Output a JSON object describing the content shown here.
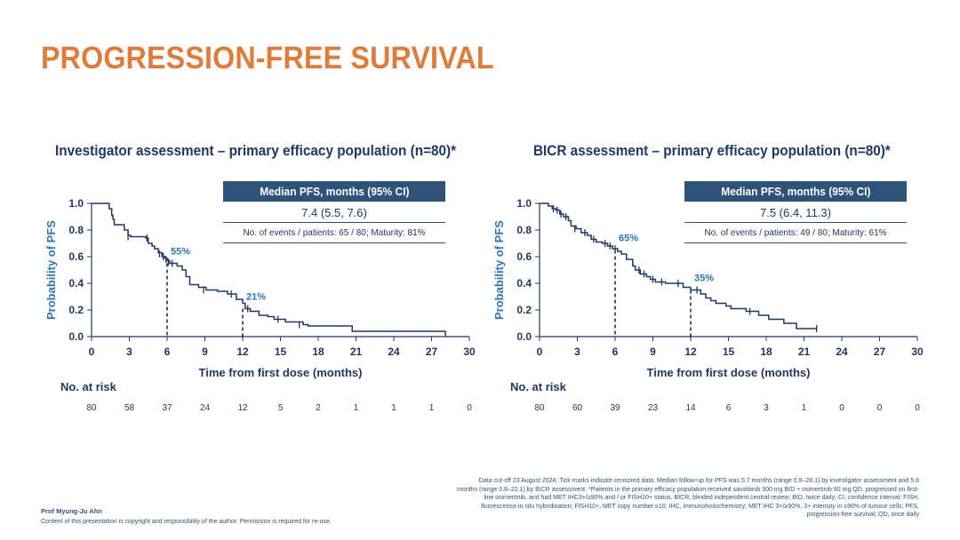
{
  "title": "PROGRESSION-FREE SURVIVAL",
  "chart_data": [
    {
      "type": "line",
      "title": "Investigator assessment – primary efficacy population (n=80)*",
      "xlabel": "Time from first dose (months)",
      "ylabel": "Probability of PFS",
      "xlim": [
        0,
        30
      ],
      "ylim": [
        0,
        1.0
      ],
      "xticks": [
        "0",
        "3",
        "6",
        "9",
        "12",
        "15",
        "18",
        "21",
        "24",
        "27",
        "30"
      ],
      "yticks": [
        "0.0",
        "0.2",
        "0.4",
        "0.6",
        "0.8",
        "1.0"
      ],
      "info_header": "Median PFS, months (95% CI)",
      "median": "7.4 (5.5, 7.6)",
      "events": "No. of events / patients: 65 / 80; Maturity: 81%",
      "annotations": [
        {
          "text": "55%",
          "x": 6,
          "y": 0.55
        },
        {
          "text": "21%",
          "x": 12,
          "y": 0.21
        }
      ],
      "steps": [
        [
          0,
          1.0
        ],
        [
          1.2,
          1.0
        ],
        [
          1.4,
          0.96
        ],
        [
          1.6,
          0.91
        ],
        [
          1.7,
          0.88
        ],
        [
          1.8,
          0.84
        ],
        [
          2.5,
          0.84
        ],
        [
          2.6,
          0.8
        ],
        [
          2.9,
          0.76
        ],
        [
          3.1,
          0.75
        ],
        [
          4.3,
          0.74
        ],
        [
          4.5,
          0.7
        ],
        [
          4.8,
          0.68
        ],
        [
          5.0,
          0.66
        ],
        [
          5.3,
          0.63
        ],
        [
          5.6,
          0.6
        ],
        [
          5.8,
          0.59
        ],
        [
          6.0,
          0.57
        ],
        [
          6.2,
          0.55
        ],
        [
          6.6,
          0.55
        ],
        [
          6.8,
          0.53
        ],
        [
          7.2,
          0.5
        ],
        [
          7.5,
          0.45
        ],
        [
          7.8,
          0.39
        ],
        [
          8.5,
          0.37
        ],
        [
          9.1,
          0.35
        ],
        [
          10.0,
          0.34
        ],
        [
          10.8,
          0.32
        ],
        [
          11.5,
          0.28
        ],
        [
          12.0,
          0.25
        ],
        [
          12.2,
          0.21
        ],
        [
          12.6,
          0.19
        ],
        [
          13.3,
          0.16
        ],
        [
          14.0,
          0.15
        ],
        [
          14.5,
          0.13
        ],
        [
          15.4,
          0.11
        ],
        [
          16.8,
          0.09
        ],
        [
          17.2,
          0.08
        ],
        [
          20.7,
          0.08
        ],
        [
          20.7,
          0.04
        ],
        [
          28.1,
          0.04
        ],
        [
          28.1,
          0.0
        ]
      ],
      "censors": [
        [
          2.9,
          0.75
        ],
        [
          4.4,
          0.74
        ],
        [
          5.4,
          0.62
        ],
        [
          5.7,
          0.6
        ],
        [
          5.9,
          0.58
        ],
        [
          6.1,
          0.56
        ],
        [
          6.4,
          0.55
        ],
        [
          8.9,
          0.35
        ],
        [
          11.1,
          0.32
        ],
        [
          12.4,
          0.21
        ],
        [
          14.8,
          0.13
        ],
        [
          16.5,
          0.09
        ]
      ],
      "risk_title": "No. at risk",
      "risk_times": [
        0,
        3,
        6,
        9,
        12,
        15,
        18,
        21,
        24,
        27,
        30
      ],
      "at_risk": [
        "80",
        "58",
        "37",
        "24",
        "12",
        "5",
        "2",
        "1",
        "1",
        "1",
        "0"
      ]
    },
    {
      "type": "line",
      "title": "BICR assessment – primary efficacy population (n=80)*",
      "xlabel": "Time from first dose (months)",
      "ylabel": "Probability of PFS",
      "xlim": [
        0,
        30
      ],
      "ylim": [
        0,
        1.0
      ],
      "xticks": [
        "0",
        "3",
        "6",
        "9",
        "12",
        "15",
        "18",
        "21",
        "24",
        "27",
        "30"
      ],
      "yticks": [
        "0.0",
        "0.2",
        "0.4",
        "0.6",
        "0.8",
        "1.0"
      ],
      "info_header": "Median PFS, months (95% CI)",
      "median": "7.5 (6.4, 11.3)",
      "events": "No. of events / patients: 49 / 80; Maturity: 61%",
      "annotations": [
        {
          "text": "65%",
          "x": 6,
          "y": 0.65
        },
        {
          "text": "35%",
          "x": 12,
          "y": 0.35
        }
      ],
      "steps": [
        [
          0,
          1.0
        ],
        [
          0.5,
          1.0
        ],
        [
          0.7,
          0.98
        ],
        [
          1.0,
          0.96
        ],
        [
          1.3,
          0.95
        ],
        [
          1.6,
          0.92
        ],
        [
          1.9,
          0.9
        ],
        [
          2.3,
          0.87
        ],
        [
          2.5,
          0.83
        ],
        [
          2.9,
          0.81
        ],
        [
          3.3,
          0.78
        ],
        [
          3.8,
          0.76
        ],
        [
          4.1,
          0.73
        ],
        [
          4.5,
          0.71
        ],
        [
          5.0,
          0.7
        ],
        [
          5.4,
          0.68
        ],
        [
          5.8,
          0.66
        ],
        [
          6.2,
          0.64
        ],
        [
          6.5,
          0.62
        ],
        [
          6.9,
          0.58
        ],
        [
          7.2,
          0.58
        ],
        [
          7.4,
          0.53
        ],
        [
          7.6,
          0.5
        ],
        [
          8.0,
          0.47
        ],
        [
          8.5,
          0.45
        ],
        [
          8.8,
          0.43
        ],
        [
          9.2,
          0.41
        ],
        [
          10.0,
          0.4
        ],
        [
          11.2,
          0.4
        ],
        [
          11.4,
          0.37
        ],
        [
          12.0,
          0.35
        ],
        [
          12.2,
          0.35
        ],
        [
          12.8,
          0.32
        ],
        [
          13.2,
          0.29
        ],
        [
          13.6,
          0.27
        ],
        [
          14.0,
          0.25
        ],
        [
          14.8,
          0.23
        ],
        [
          15.2,
          0.21
        ],
        [
          16.4,
          0.19
        ],
        [
          17.2,
          0.19
        ],
        [
          17.4,
          0.16
        ],
        [
          18.2,
          0.13
        ],
        [
          19.0,
          0.13
        ],
        [
          19.4,
          0.1
        ],
        [
          20.2,
          0.1
        ],
        [
          20.4,
          0.06
        ],
        [
          22.0,
          0.06
        ]
      ],
      "censors": [
        [
          1.1,
          0.96
        ],
        [
          1.4,
          0.95
        ],
        [
          1.7,
          0.92
        ],
        [
          2.1,
          0.9
        ],
        [
          2.8,
          0.81
        ],
        [
          3.6,
          0.78
        ],
        [
          4.3,
          0.73
        ],
        [
          5.2,
          0.7
        ],
        [
          5.6,
          0.68
        ],
        [
          6.0,
          0.66
        ],
        [
          7.9,
          0.5
        ],
        [
          8.3,
          0.47
        ],
        [
          9.0,
          0.43
        ],
        [
          9.7,
          0.41
        ],
        [
          11.0,
          0.4
        ],
        [
          12.5,
          0.35
        ],
        [
          16.7,
          0.19
        ],
        [
          22.0,
          0.06
        ]
      ],
      "risk_title": "No. at risk",
      "risk_times": [
        0,
        3,
        6,
        9,
        12,
        15,
        18,
        21,
        24,
        27,
        30
      ],
      "at_risk": [
        "80",
        "60",
        "39",
        "23",
        "14",
        "6",
        "3",
        "1",
        "0",
        "0",
        "0"
      ]
    }
  ],
  "footer": {
    "author": "Prof Myung-Ju Ahn",
    "copyright": "Content of this presentation is copyright and responsibility of the author. Permission is required for re-use.",
    "footnote": "Data cut-off 23 August 2024. Tick marks indicate censored data. Median follow-up for PFS was 5.7 months (range 0.9–28.1) by investigator assessment and 5.8 months (range 0.9–22.1) by BICR assessment. *Patients in the primary efficacy population received savolitinib 300 mg BID + osimertinib 80 mg QD, progressed on first-line osimertinib, and had MET IHC3+/≥90% and / or FISH10+ status. BICR, blinded independent central review; BID, twice daily; CI, confidence interval; FISH, fluorescence in situ hybridisation; FISH10+, MET copy number ≥10; IHC, immunohistochemistry; MET IHC 3+/≥90%, 3+ intensity in ≥90% of tumour cells; PFS, progression-free survival; QD, once daily"
  },
  "colors": {
    "title": "#e07b39",
    "curve": "#1f3864",
    "header_box": "#2f5278",
    "label_blue": "#2e75b6"
  }
}
